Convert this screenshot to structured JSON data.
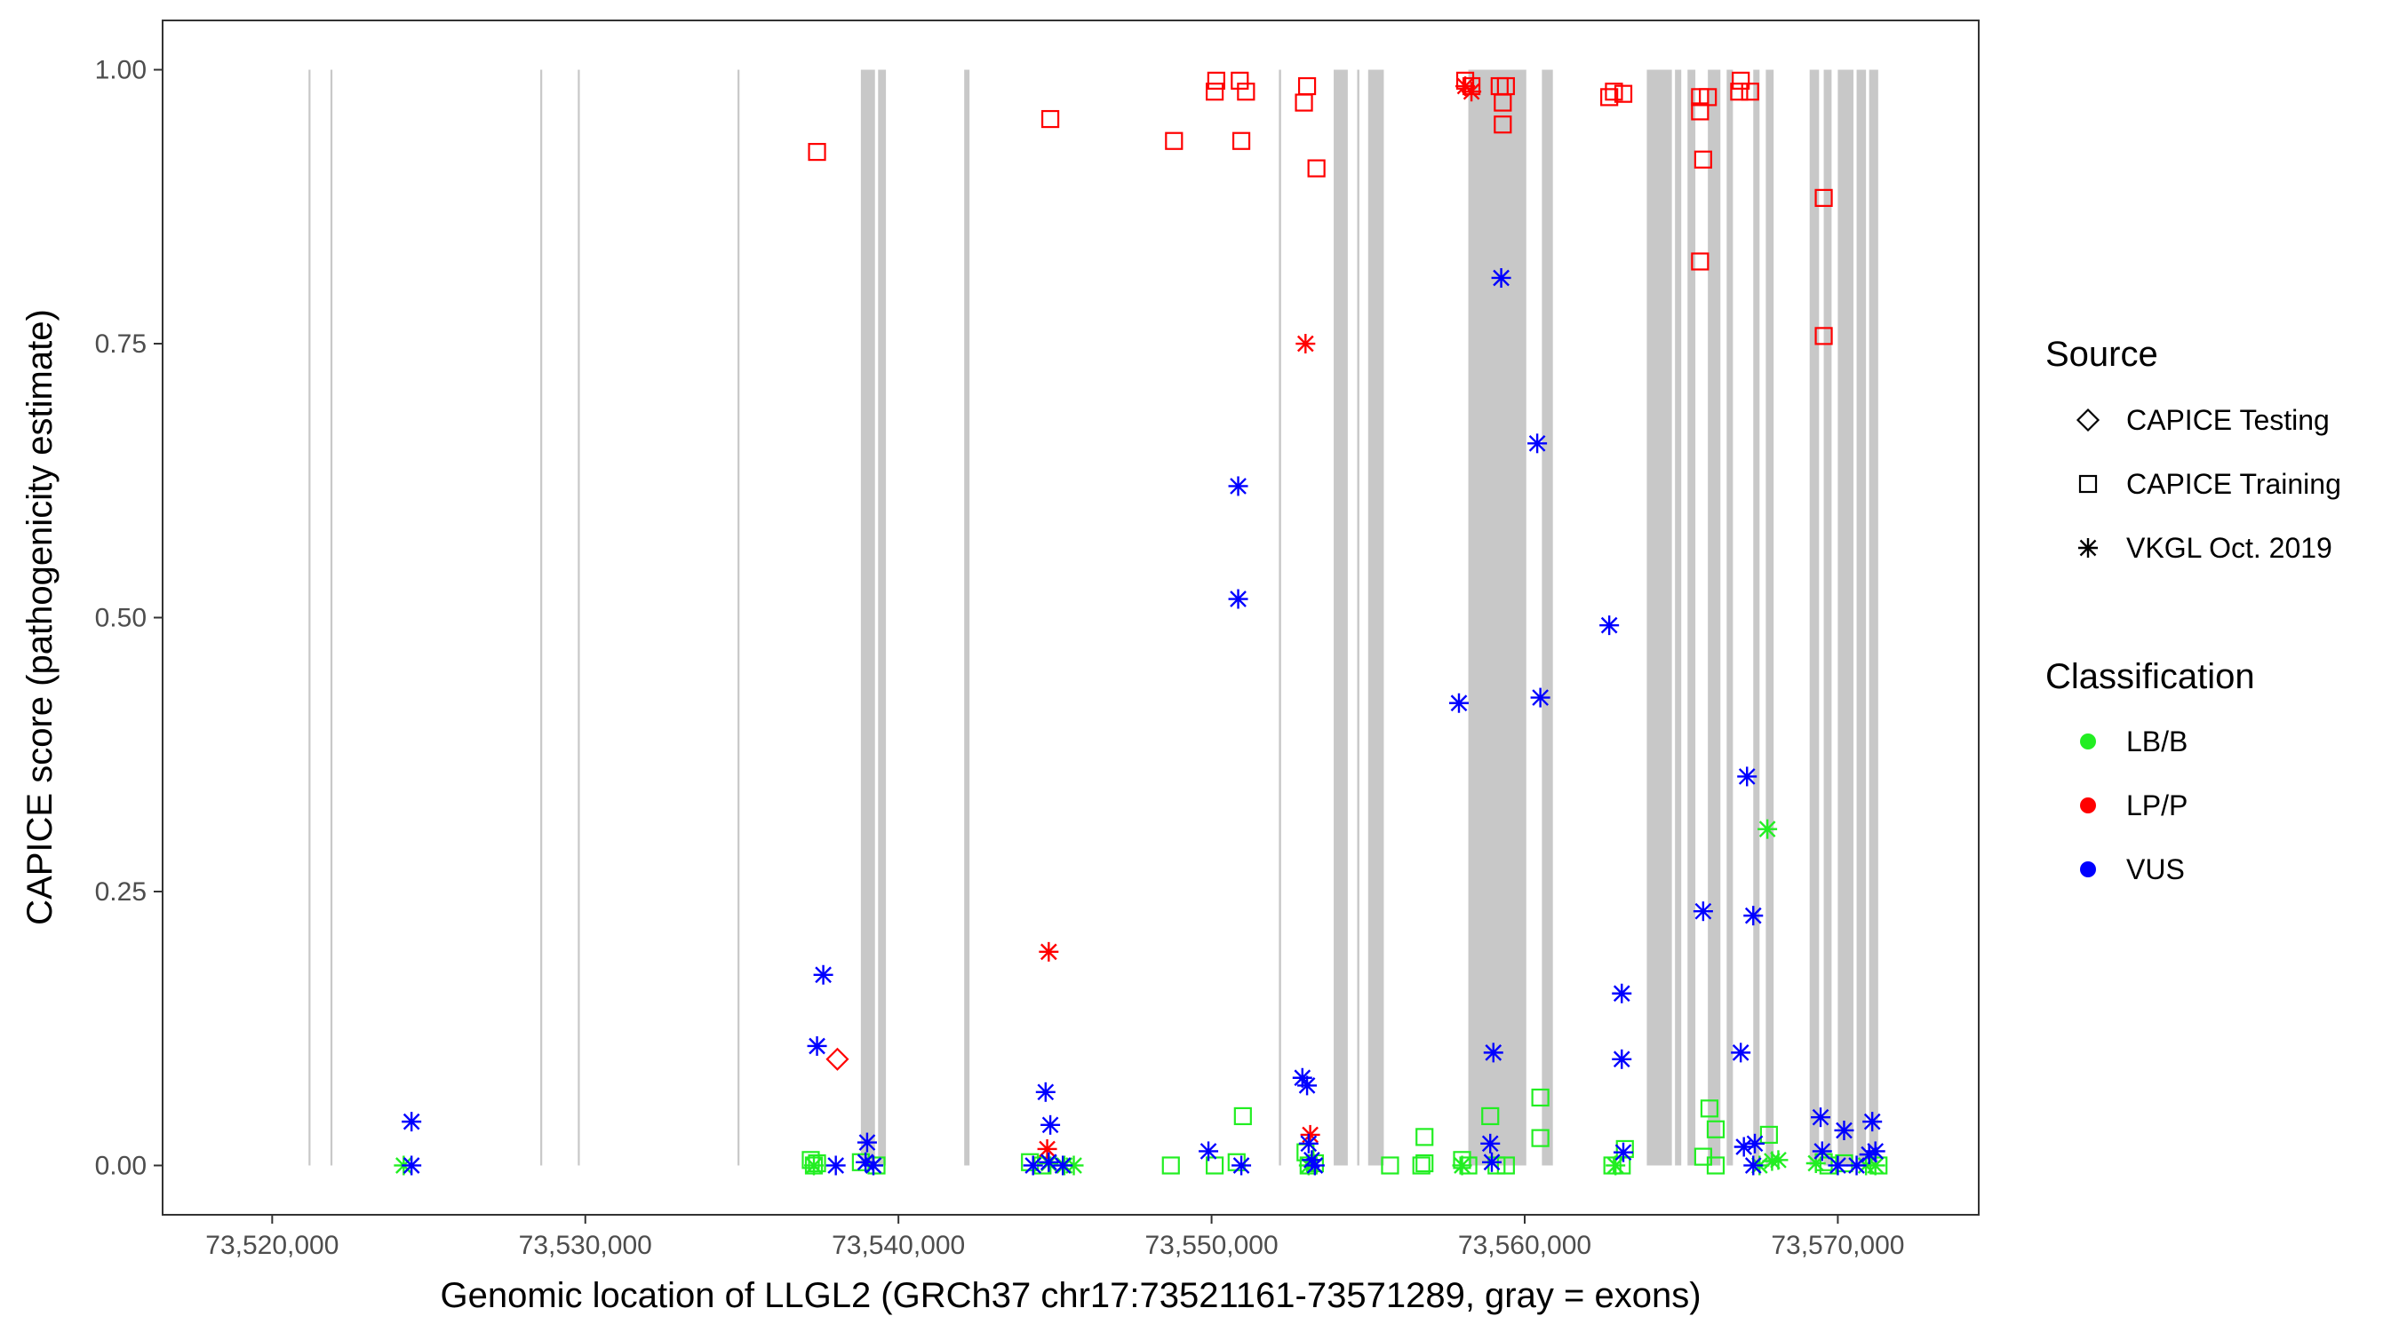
{
  "chart_data": {
    "type": "scatter",
    "title": "",
    "xlabel": "Genomic location of LLGL2 (GRCh37 chr17:73521161-73571289, gray = exons)",
    "ylabel": "CAPICE score (pathogenicity estimate)",
    "xlim": [
      73516500,
      73574500
    ],
    "ylim": [
      -0.045,
      1.045
    ],
    "x_ticks": [
      73520000,
      73530000,
      73540000,
      73550000,
      73560000,
      73570000
    ],
    "x_tick_labels": [
      "73,520,000",
      "73,530,000",
      "73,540,000",
      "73,550,000",
      "73,560,000",
      "73,570,000"
    ],
    "y_ticks": [
      0,
      0.25,
      0.5,
      0.75,
      1.0
    ],
    "y_tick_labels": [
      "0.00",
      "0.25",
      "0.50",
      "0.75",
      "1.00"
    ],
    "grid": false,
    "exon_color": "#c8c8c8",
    "exon_ymax": 1.0,
    "exons": [
      [
        73521161,
        73521215
      ],
      [
        73521861,
        73521915
      ],
      [
        73528561,
        73528615
      ],
      [
        73529761,
        73529815
      ],
      [
        73534861,
        73534915
      ],
      [
        73538800,
        73539250
      ],
      [
        73539350,
        73539600
      ],
      [
        73542100,
        73542270
      ],
      [
        73552150,
        73552220
      ],
      [
        73553900,
        73554350
      ],
      [
        73554650,
        73554720
      ],
      [
        73555000,
        73555500
      ],
      [
        73558200,
        73560050
      ],
      [
        73560550,
        73560900
      ],
      [
        73563900,
        73564700
      ],
      [
        73564800,
        73565000
      ],
      [
        73565200,
        73565450
      ],
      [
        73565850,
        73566250
      ],
      [
        73566450,
        73566650
      ],
      [
        73567300,
        73567500
      ],
      [
        73567700,
        73567950
      ],
      [
        73569100,
        73569400
      ],
      [
        73569550,
        73569800
      ],
      [
        73570000,
        73570500
      ],
      [
        73570600,
        73570900
      ],
      [
        73571000,
        73571289
      ]
    ],
    "legend": {
      "position": "right",
      "source_title": "Source",
      "source_items": [
        {
          "label": "CAPICE Testing",
          "shape": "diamond"
        },
        {
          "label": "CAPICE Training",
          "shape": "square"
        },
        {
          "label": "VKGL Oct. 2019",
          "shape": "asterisk"
        }
      ],
      "classification_title": "Classification",
      "classification_items": [
        {
          "label": "LB/B",
          "color": "#22ee22"
        },
        {
          "label": "LP/P",
          "color": "#ff0000"
        },
        {
          "label": "VUS",
          "color": "#0000ff"
        }
      ]
    },
    "series": [
      {
        "name": "CAPICE Training LP/P",
        "shape": "square",
        "color": "#ff0000",
        "points": [
          [
            73537400,
            0.925
          ],
          [
            73544850,
            0.955
          ],
          [
            73548800,
            0.935
          ],
          [
            73550150,
            0.99
          ],
          [
            73550100,
            0.98
          ],
          [
            73550900,
            0.99
          ],
          [
            73551100,
            0.98
          ],
          [
            73550950,
            0.935
          ],
          [
            73553050,
            0.985
          ],
          [
            73552950,
            0.97
          ],
          [
            73553350,
            0.91
          ],
          [
            73558100,
            0.99
          ],
          [
            73558300,
            0.985
          ],
          [
            73559200,
            0.985
          ],
          [
            73559400,
            0.985
          ],
          [
            73559300,
            0.97
          ],
          [
            73559300,
            0.95
          ],
          [
            73562700,
            0.975
          ],
          [
            73562850,
            0.98
          ],
          [
            73563150,
            0.978
          ],
          [
            73565600,
            0.975
          ],
          [
            73565850,
            0.975
          ],
          [
            73565600,
            0.962
          ],
          [
            73565700,
            0.918
          ],
          [
            73565600,
            0.825
          ],
          [
            73566900,
            0.99
          ],
          [
            73566850,
            0.98
          ],
          [
            73567200,
            0.98
          ],
          [
            73569550,
            0.883
          ],
          [
            73569550,
            0.757
          ]
        ]
      },
      {
        "name": "CAPICE Training LB/B",
        "shape": "square",
        "color": "#22ee22",
        "points": [
          [
            73537200,
            0.005
          ],
          [
            73537400,
            0.002
          ],
          [
            73537300,
            0.0
          ],
          [
            73538800,
            0.003
          ],
          [
            73539300,
            0.0
          ],
          [
            73544200,
            0.003
          ],
          [
            73544600,
            0.0
          ],
          [
            73548700,
            0.0
          ],
          [
            73550100,
            0.0
          ],
          [
            73550800,
            0.003
          ],
          [
            73551000,
            0.045
          ],
          [
            73553000,
            0.012
          ],
          [
            73553100,
            0.0
          ],
          [
            73553300,
            0.002
          ],
          [
            73555700,
            0.0
          ],
          [
            73556700,
            0.0
          ],
          [
            73556800,
            0.026
          ],
          [
            73556800,
            0.002
          ],
          [
            73558000,
            0.005
          ],
          [
            73558200,
            0.0
          ],
          [
            73558900,
            0.045
          ],
          [
            73559100,
            0.0
          ],
          [
            73559400,
            0.0
          ],
          [
            73560500,
            0.062
          ],
          [
            73560500,
            0.025
          ],
          [
            73562800,
            0.0
          ],
          [
            73563100,
            0.0
          ],
          [
            73563200,
            0.015
          ],
          [
            73565900,
            0.052
          ],
          [
            73566100,
            0.033
          ],
          [
            73565700,
            0.008
          ],
          [
            73566100,
            0.0
          ],
          [
            73567800,
            0.028
          ],
          [
            73569550,
            0.003
          ],
          [
            73569700,
            0.0
          ],
          [
            73570200,
            0.002
          ],
          [
            73571300,
            0.0
          ]
        ]
      },
      {
        "name": "CAPICE Testing LP/P",
        "shape": "diamond",
        "color": "#ff0000",
        "points": [
          [
            73538050,
            0.097
          ]
        ]
      },
      {
        "name": "VKGL Oct. 2019 LB/B",
        "shape": "asterisk",
        "color": "#22ee22",
        "points": [
          [
            73524200,
            0.0
          ],
          [
            73537300,
            0.0
          ],
          [
            73539200,
            0.0
          ],
          [
            73544800,
            0.002
          ],
          [
            73545300,
            0.0
          ],
          [
            73545600,
            0.0
          ],
          [
            73553100,
            0.0
          ],
          [
            73558000,
            0.0
          ],
          [
            73562900,
            0.0
          ],
          [
            73567500,
            0.0
          ],
          [
            73567750,
            0.307
          ],
          [
            73567900,
            0.004
          ],
          [
            73568100,
            0.005
          ],
          [
            73569300,
            0.002
          ],
          [
            73570900,
            0.0
          ],
          [
            73571200,
            0.0
          ]
        ]
      },
      {
        "name": "VKGL Oct. 2019 LP/P",
        "shape": "asterisk",
        "color": "#ff0000",
        "points": [
          [
            73544800,
            0.195
          ],
          [
            73544750,
            0.015
          ],
          [
            73553000,
            0.75
          ],
          [
            73553150,
            0.028
          ],
          [
            73558100,
            0.985
          ],
          [
            73558300,
            0.98
          ]
        ]
      },
      {
        "name": "VKGL Oct. 2019 VUS",
        "shape": "asterisk",
        "color": "#0000ff",
        "points": [
          [
            73524450,
            0.04
          ],
          [
            73524450,
            0.0
          ],
          [
            73537400,
            0.109
          ],
          [
            73537600,
            0.174
          ],
          [
            73538000,
            0.0
          ],
          [
            73539000,
            0.021
          ],
          [
            73538950,
            0.003
          ],
          [
            73539200,
            0.0
          ],
          [
            73544300,
            0.0
          ],
          [
            73544700,
            0.067
          ],
          [
            73544850,
            0.037
          ],
          [
            73544800,
            0.003
          ],
          [
            73545250,
            0.0
          ],
          [
            73549900,
            0.013
          ],
          [
            73550850,
            0.62
          ],
          [
            73550850,
            0.517
          ],
          [
            73550950,
            0.0
          ],
          [
            73552900,
            0.08
          ],
          [
            73553050,
            0.073
          ],
          [
            73553100,
            0.02
          ],
          [
            73553200,
            0.005
          ],
          [
            73553300,
            0.0
          ],
          [
            73557900,
            0.422
          ],
          [
            73559000,
            0.103
          ],
          [
            73558900,
            0.02
          ],
          [
            73558950,
            0.003
          ],
          [
            73559250,
            0.81
          ],
          [
            73560400,
            0.659
          ],
          [
            73560500,
            0.427
          ],
          [
            73562700,
            0.493
          ],
          [
            73563100,
            0.157
          ],
          [
            73563100,
            0.097
          ],
          [
            73563150,
            0.012
          ],
          [
            73565700,
            0.232
          ],
          [
            73567100,
            0.355
          ],
          [
            73567300,
            0.228
          ],
          [
            73566900,
            0.103
          ],
          [
            73567000,
            0.017
          ],
          [
            73567350,
            0.02
          ],
          [
            73567300,
            0.0
          ],
          [
            73569450,
            0.044
          ],
          [
            73569500,
            0.013
          ],
          [
            73570200,
            0.032
          ],
          [
            73570000,
            0.0
          ],
          [
            73570600,
            0.0
          ],
          [
            73571100,
            0.04
          ],
          [
            73571200,
            0.013
          ],
          [
            73571000,
            0.01
          ]
        ]
      }
    ]
  }
}
